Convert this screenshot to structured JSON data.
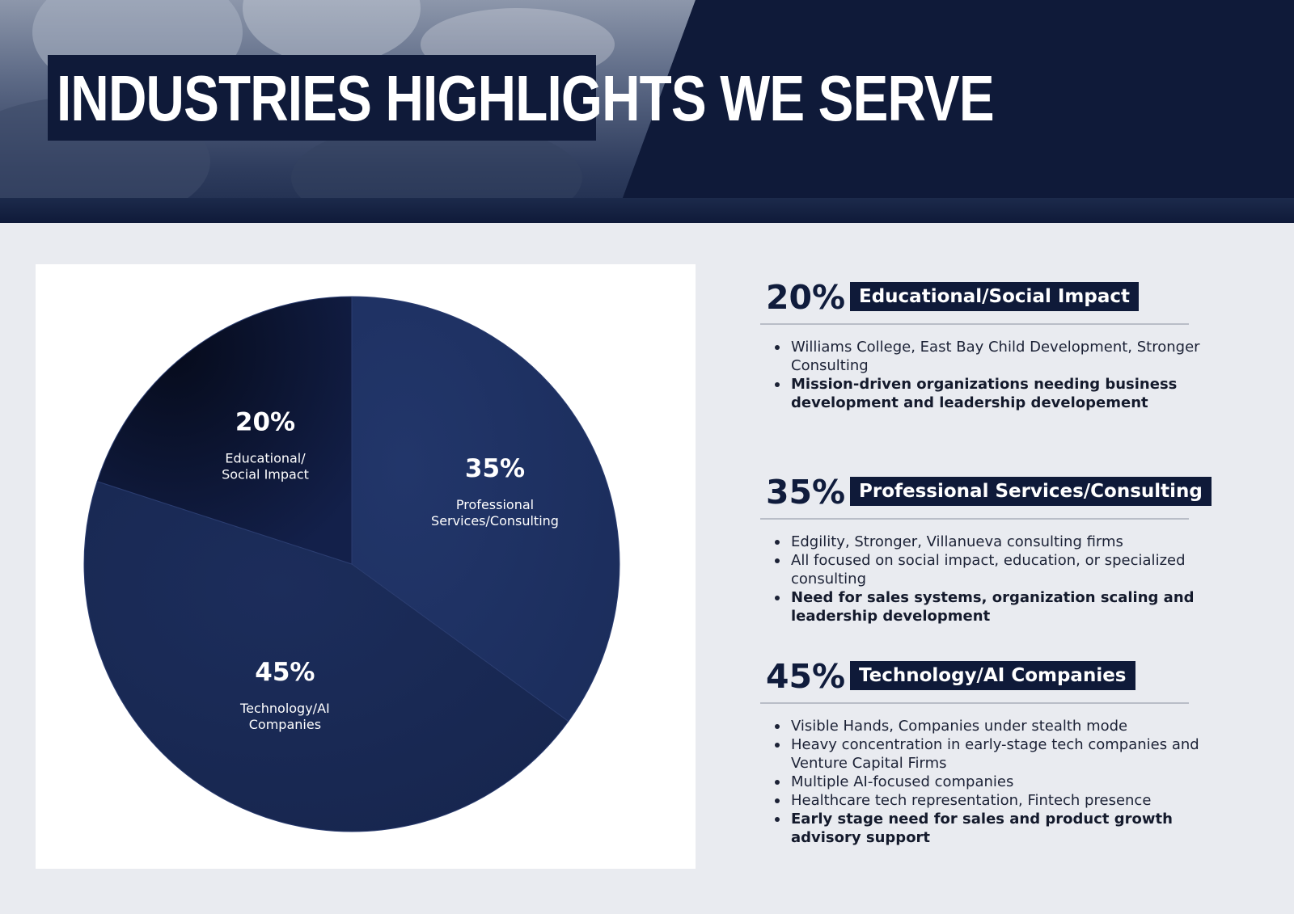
{
  "header": {
    "title": "INDUSTRIES HIGHLIGHTS WE SERVE"
  },
  "colors": {
    "navy_dark": "#0f1a39",
    "slice_educational": "#0c1633",
    "slice_professional": "#1e3161",
    "slice_technology": "#1a2b58",
    "background": "#e9ebf0"
  },
  "chart_data": {
    "type": "pie",
    "title": "",
    "slices": [
      {
        "label_line1": "Professional",
        "label_line2": "Services/Consulting",
        "value": 35,
        "pct_label": "35%"
      },
      {
        "label_line1": "Technology/AI",
        "label_line2": "Companies",
        "value": 45,
        "pct_label": "45%"
      },
      {
        "label_line1": "Educational/",
        "label_line2": "Social Impact",
        "value": 20,
        "pct_label": "20%"
      }
    ],
    "start_angle_deg": 0,
    "direction": "clockwise",
    "legend": "none"
  },
  "sections": [
    {
      "pct": "20%",
      "title": "Educational/Social Impact",
      "bullets": [
        {
          "text": "Williams College, East Bay Child Development, Stronger Consulting",
          "bold": false
        },
        {
          "text": "Mission-driven organizations needing business development and leadership developement",
          "bold": true
        }
      ]
    },
    {
      "pct": "35%",
      "title": "Professional Services/Consulting",
      "bullets": [
        {
          "text": "Edgility, Stronger, Villanueva consulting firms",
          "bold": false
        },
        {
          "text": "All focused on social impact, education, or specialized consulting",
          "bold": false
        },
        {
          "text": "Need for sales systems, organization scaling and leadership development",
          "bold": true
        }
      ]
    },
    {
      "pct": "45%",
      "title": "Technology/AI Companies",
      "bullets": [
        {
          "text": "Visible Hands, Companies under stealth mode",
          "bold": false
        },
        {
          "text": "Heavy concentration in early-stage tech companies and Venture Capital Firms",
          "bold": false
        },
        {
          "text": "Multiple AI-focused companies",
          "bold": false
        },
        {
          "text": "Healthcare tech representation, Fintech presence",
          "bold": false
        },
        {
          "text": "Early stage need for sales and product growth advisory support",
          "bold": true
        }
      ]
    }
  ]
}
